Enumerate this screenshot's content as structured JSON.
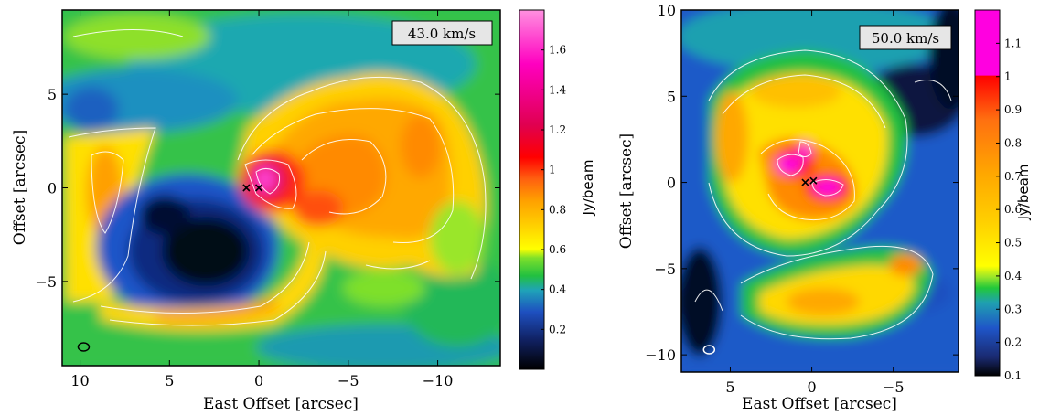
{
  "chart_data": [
    {
      "type": "heatmap",
      "title": "",
      "annotation": "43.0 km/s",
      "xlabel": "East Offset [arcsec]",
      "ylabel": "Offset [arcsec]",
      "xlim": [
        11,
        -13.5
      ],
      "ylim": [
        -9.5,
        9.5
      ],
      "xticks": [
        10,
        5,
        0,
        -5,
        -10
      ],
      "xtick_labels": [
        "10",
        "5",
        "0",
        "−5",
        "−10"
      ],
      "yticks": [
        5,
        0,
        -5
      ],
      "ytick_labels": [
        "5",
        "0",
        "−5"
      ],
      "colorbar": {
        "label": "Jy/beam",
        "range": [
          0.0,
          1.8
        ],
        "ticks": [
          0.2,
          0.4,
          0.6,
          0.8,
          1,
          1.2,
          1.4,
          1.6
        ],
        "tick_labels": [
          "0.2",
          "0.4",
          "0.6",
          "0.8",
          "1",
          "1.2",
          "1.4",
          "1.6"
        ],
        "colormap": [
          "#000000",
          "#102060",
          "#1e50c0",
          "#1fa3b8",
          "#22c040",
          "#7ee02a",
          "#ffff00",
          "#ffd000",
          "#ffa000",
          "#ff6010",
          "#ff0000",
          "#e00050",
          "#ff00c0",
          "#ff90e0"
        ]
      },
      "markers": [
        {
          "x": 0.7,
          "y": 0.0,
          "symbol": "x"
        },
        {
          "x": 0.0,
          "y": 0.0,
          "symbol": "x"
        }
      ],
      "beam": {
        "x": 9.8,
        "y": -8.5
      }
    },
    {
      "type": "heatmap",
      "title": "",
      "annotation": "50.0 km/s",
      "xlabel": "East Offset [arcsec]",
      "ylabel": "Offset [arcsec]",
      "xlim": [
        8,
        -9
      ],
      "ylim": [
        -11,
        10
      ],
      "xticks": [
        5,
        0,
        -5
      ],
      "xtick_labels": [
        "5",
        "0",
        "−5"
      ],
      "yticks": [
        10,
        5,
        0,
        -5,
        -10
      ],
      "ytick_labels": [
        "10",
        "5",
        "0",
        "−5",
        "−10"
      ],
      "colorbar": {
        "label": "Jy/beam",
        "range": [
          0.1,
          1.2
        ],
        "ticks": [
          0.1,
          0.2,
          0.3,
          0.4,
          0.5,
          0.6,
          0.7,
          0.8,
          0.9,
          1,
          1.1
        ],
        "tick_labels": [
          "0.1",
          "0.2",
          "0.3",
          "0.4",
          "0.5",
          "0.6",
          "0.7",
          "0.8",
          "0.9",
          "1",
          "1.1"
        ],
        "colormap": [
          "#000000",
          "#1a2a70",
          "#1f55c8",
          "#1fa0b0",
          "#22c83a",
          "#9ae62a",
          "#ffff00",
          "#ffd000",
          "#ffa800",
          "#ff7010",
          "#ff0000",
          "#ff00e0"
        ]
      },
      "markers": [
        {
          "x": 0.4,
          "y": 0.0,
          "symbol": "x"
        },
        {
          "x": -0.1,
          "y": 0.1,
          "symbol": "x"
        }
      ],
      "beam": {
        "x": 6.3,
        "y": -9.7
      }
    }
  ]
}
